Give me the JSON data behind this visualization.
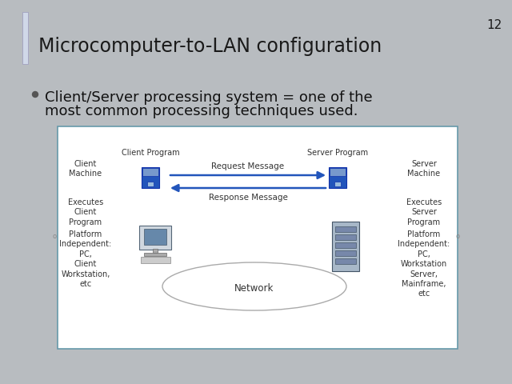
{
  "title": "Microcomputer-to-LAN configuration",
  "slide_number": "12",
  "bullet_text_line1": "Client/Server processing system = one of the",
  "bullet_text_line2": "most common processing techniques used.",
  "bg_color": "#b8bcc0",
  "title_color": "#1a1a1a",
  "bullet_color": "#111111",
  "diagram_border": "#6699aa",
  "client_program_label": "Client Program",
  "server_program_label": "Server Program",
  "client_machine_label": "Client\nMachine",
  "server_machine_label": "Server\nMachine",
  "executes_client": "Executes\nClient\nProgram",
  "executes_server": "Executes\nServer\nProgram",
  "platform_client": "Platform\nIndependent:\nPC,\nClient\nWorkstation,\netc",
  "platform_server": "Platform\nIndependent:\nPC,\nWorkstation\nServer,\nMainframe,\netc",
  "request_msg": "Request Message",
  "response_msg": "Response Message",
  "network_label": "Network",
  "arrow_color": "#2255bb",
  "disk_color": "#2255bb",
  "diagram_text_color": "#333333",
  "accent_bar_color": "#d0d8e8",
  "figw": 6.4,
  "figh": 4.8,
  "dpi": 100
}
